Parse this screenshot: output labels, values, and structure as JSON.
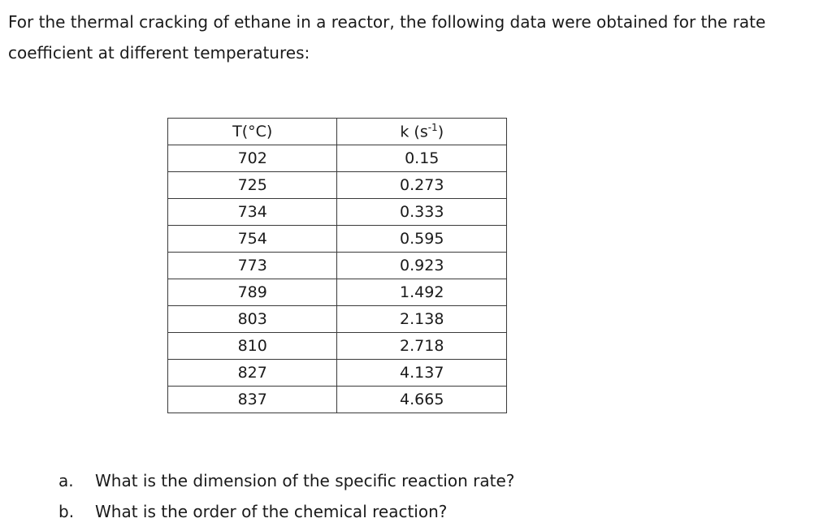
{
  "intro": {
    "text": "For the thermal cracking of ethane in a reactor, the following data were obtained for the rate coefficient at different temperatures:"
  },
  "table": {
    "header": {
      "t": "T(°C)",
      "k_prefix": "k (s",
      "k_sup": "-1",
      "k_suffix": ")"
    },
    "rows": [
      {
        "t": "702",
        "k": "0.15"
      },
      {
        "t": "725",
        "k": "0.273"
      },
      {
        "t": "734",
        "k": "0.333"
      },
      {
        "t": "754",
        "k": "0.595"
      },
      {
        "t": "773",
        "k": "0.923"
      },
      {
        "t": "789",
        "k": "1.492"
      },
      {
        "t": "803",
        "k": "2.138"
      },
      {
        "t": "810",
        "k": "2.718"
      },
      {
        "t": "827",
        "k": "4.137"
      },
      {
        "t": "837",
        "k": "4.665"
      }
    ]
  },
  "questions": [
    {
      "marker": "a.",
      "text": "What is the dimension of the specific reaction rate?"
    },
    {
      "marker": "b.",
      "text": "What is the order of the chemical reaction?"
    }
  ]
}
